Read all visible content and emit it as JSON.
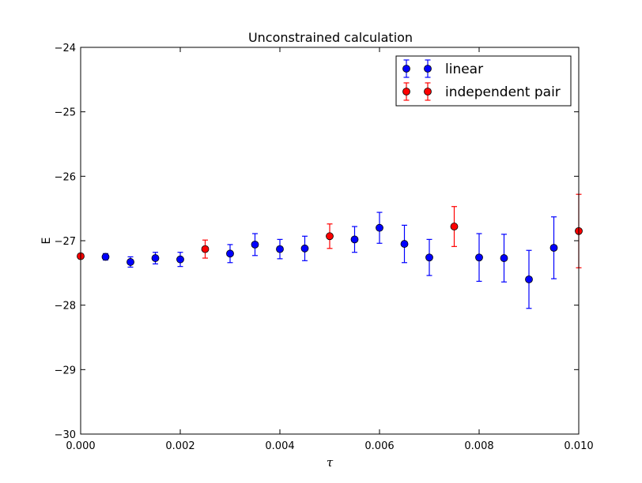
{
  "chart_data": {
    "type": "scatter",
    "title": "Unconstrained calculation",
    "xlabel": "τ",
    "ylabel": "E",
    "xlim": [
      0,
      0.01
    ],
    "ylim": [
      -30,
      -24
    ],
    "xticks": [
      "0.000",
      "0.002",
      "0.004",
      "0.006",
      "0.008",
      "0.010"
    ],
    "xtick_values": [
      0,
      0.002,
      0.004,
      0.006,
      0.008,
      0.01
    ],
    "yticks": [
      "−30",
      "−29",
      "−28",
      "−27",
      "−26",
      "−25",
      "−24"
    ],
    "ytick_values": [
      -30,
      -29,
      -28,
      -27,
      -26,
      -25,
      -24
    ],
    "grid": false,
    "legend_position": "top-right",
    "series": [
      {
        "name": "linear",
        "color": "#0000ff",
        "marker": "circle",
        "points": [
          {
            "x": 0.0005,
            "y": -27.25,
            "err": 0.05
          },
          {
            "x": 0.001,
            "y": -27.33,
            "err": 0.08
          },
          {
            "x": 0.0015,
            "y": -27.27,
            "err": 0.09
          },
          {
            "x": 0.002,
            "y": -27.29,
            "err": 0.11
          },
          {
            "x": 0.003,
            "y": -27.2,
            "err": 0.14
          },
          {
            "x": 0.0035,
            "y": -27.06,
            "err": 0.17
          },
          {
            "x": 0.004,
            "y": -27.13,
            "err": 0.15
          },
          {
            "x": 0.0045,
            "y": -27.12,
            "err": 0.19
          },
          {
            "x": 0.0055,
            "y": -26.98,
            "err": 0.2
          },
          {
            "x": 0.006,
            "y": -26.8,
            "err": 0.24
          },
          {
            "x": 0.0065,
            "y": -27.05,
            "err": 0.29
          },
          {
            "x": 0.007,
            "y": -27.26,
            "err": 0.28
          },
          {
            "x": 0.008,
            "y": -27.26,
            "err": 0.37
          },
          {
            "x": 0.0085,
            "y": -27.27,
            "err": 0.37
          },
          {
            "x": 0.009,
            "y": -27.6,
            "err": 0.45
          },
          {
            "x": 0.0095,
            "y": -27.11,
            "err": 0.48
          }
        ]
      },
      {
        "name": "independent pair",
        "color": "#ff0000",
        "marker": "circle",
        "points": [
          {
            "x": 0.0,
            "y": -27.24,
            "err": 0.02
          },
          {
            "x": 0.0025,
            "y": -27.13,
            "err": 0.14
          },
          {
            "x": 0.005,
            "y": -26.93,
            "err": 0.19
          },
          {
            "x": 0.0075,
            "y": -26.78,
            "err": 0.31
          },
          {
            "x": 0.01,
            "y": -26.85,
            "err": 0.57
          }
        ]
      }
    ]
  }
}
